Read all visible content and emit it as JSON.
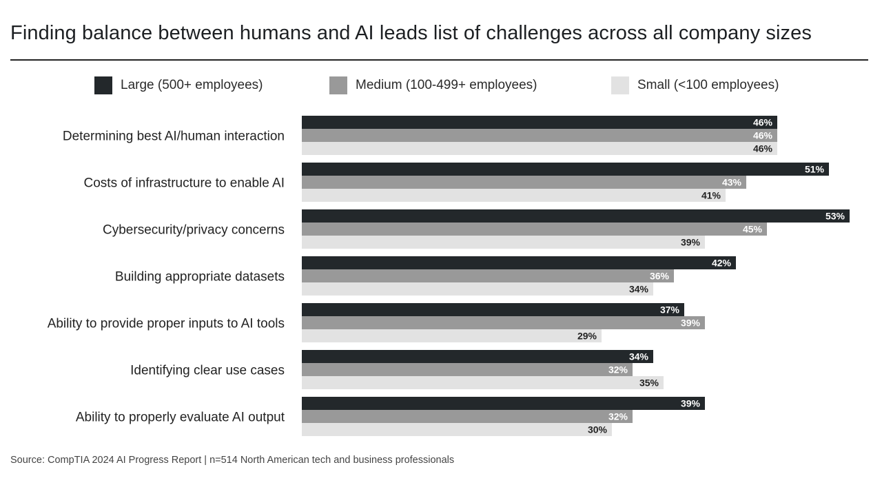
{
  "header": {
    "title": "Finding balance between humans and AI leads list of challenges across all company sizes"
  },
  "legend": [
    {
      "label": "Large (500+ employees)",
      "color": "#23282b"
    },
    {
      "label": "Medium (100-499+ employees)",
      "color": "#999999"
    },
    {
      "label": "Small (<100 employees)",
      "color": "#e2e2e2"
    }
  ],
  "footer": {
    "source": "Source: CompTIA 2024 AI Progress Report | n=514 North American tech and business professionals"
  },
  "chart_data": {
    "type": "bar",
    "orientation": "horizontal",
    "title": "Finding balance between humans and AI leads list of challenges across all company sizes",
    "xlabel": "",
    "ylabel": "",
    "xlim": [
      0,
      53
    ],
    "value_suffix": "%",
    "legend_position": "top",
    "categories": [
      "Determining best AI/human interaction",
      "Costs of infrastructure to enable AI",
      "Cybersecurity/privacy concerns",
      "Building appropriate datasets",
      "Ability to provide proper inputs to AI tools",
      "Identifying clear use cases",
      "Ability to properly evaluate AI output"
    ],
    "series": [
      {
        "name": "Large (500+ employees)",
        "color": "#23282b",
        "label_color": "#ffffff",
        "values": [
          46,
          51,
          53,
          42,
          37,
          34,
          39
        ]
      },
      {
        "name": "Medium (100-499+ employees)",
        "color": "#999999",
        "label_color": "#ffffff",
        "values": [
          46,
          43,
          45,
          36,
          39,
          32,
          32
        ]
      },
      {
        "name": "Small (<100 employees)",
        "color": "#e2e2e2",
        "label_color": "#222222",
        "values": [
          46,
          41,
          39,
          34,
          29,
          35,
          30
        ]
      }
    ]
  }
}
